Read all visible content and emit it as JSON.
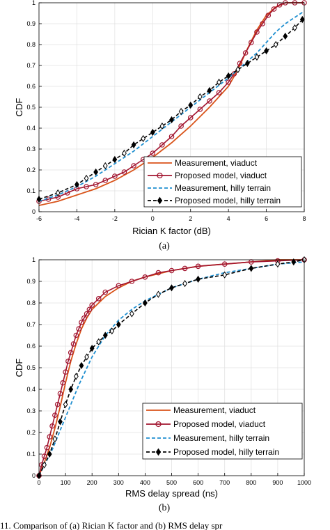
{
  "chart_data": [
    {
      "type": "line",
      "subplot_label": "(a)",
      "xlabel": "Rician K factor (dB)",
      "ylabel": "CDF",
      "xlim": [
        -6,
        8
      ],
      "ylim": [
        0,
        1
      ],
      "xticks": [
        -6,
        -4,
        -2,
        0,
        2,
        4,
        6,
        8
      ],
      "yticks": [
        0,
        0.1,
        0.2,
        0.3,
        0.4,
        0.5,
        0.6,
        0.7,
        0.8,
        0.9,
        1
      ],
      "grid": true,
      "legend_position": "bottom-right",
      "series": [
        {
          "name": "Measurement, viaduct",
          "color": "#d95319",
          "style": "solid",
          "marker": "none",
          "x": [
            -6,
            -5,
            -4,
            -3,
            -2,
            -1,
            0,
            1,
            2,
            3,
            4,
            4.5,
            5,
            5.5,
            6,
            6.5,
            7,
            7.5,
            8
          ],
          "y": [
            0.03,
            0.05,
            0.08,
            0.11,
            0.15,
            0.2,
            0.26,
            0.33,
            0.41,
            0.5,
            0.6,
            0.68,
            0.78,
            0.87,
            0.94,
            0.98,
            1.0,
            1.0,
            1.0
          ]
        },
        {
          "name": "Proposed model, viaduct",
          "color": "#a2142f",
          "style": "solid",
          "marker": "circle",
          "x": [
            -6,
            -5.5,
            -5,
            -4.5,
            -4,
            -3.5,
            -3,
            -2.5,
            -2,
            -1.5,
            -1,
            -0.5,
            0,
            0.5,
            1,
            1.5,
            2,
            2.5,
            3,
            3.5,
            4,
            4.3,
            4.6,
            4.9,
            5.2,
            5.5,
            5.8,
            6.1,
            6.4,
            6.7,
            7,
            7.5,
            8
          ],
          "y": [
            0.05,
            0.06,
            0.07,
            0.09,
            0.11,
            0.12,
            0.13,
            0.15,
            0.17,
            0.19,
            0.22,
            0.25,
            0.28,
            0.32,
            0.36,
            0.41,
            0.45,
            0.49,
            0.53,
            0.57,
            0.62,
            0.66,
            0.71,
            0.76,
            0.81,
            0.86,
            0.9,
            0.94,
            0.97,
            0.99,
            1.0,
            1.0,
            1.0
          ]
        },
        {
          "name": "Measurement, hilly terrain",
          "color": "#1f8fd0",
          "style": "dashed",
          "marker": "none",
          "x": [
            -6,
            -5,
            -4,
            -3,
            -2,
            -1,
            0,
            1,
            2,
            3,
            4,
            4.5,
            5,
            5.5,
            6,
            6.5,
            7,
            7.5,
            8
          ],
          "y": [
            0.05,
            0.08,
            0.12,
            0.17,
            0.23,
            0.29,
            0.36,
            0.43,
            0.5,
            0.57,
            0.64,
            0.68,
            0.72,
            0.76,
            0.81,
            0.86,
            0.9,
            0.93,
            0.96
          ]
        },
        {
          "name": "Proposed model, hilly terrain",
          "color": "#000000",
          "style": "dashed",
          "marker": "diamond",
          "x": [
            -6,
            -5,
            -4,
            -3.5,
            -3,
            -2.5,
            -2,
            -1.5,
            -1,
            -0.5,
            0,
            0.5,
            1,
            1.5,
            2,
            2.5,
            3,
            3.5,
            4,
            4.5,
            5,
            5.5,
            6,
            6.5,
            7,
            7.5,
            7.9
          ],
          "y": [
            0.06,
            0.09,
            0.13,
            0.16,
            0.19,
            0.22,
            0.25,
            0.28,
            0.32,
            0.35,
            0.38,
            0.41,
            0.44,
            0.48,
            0.51,
            0.55,
            0.58,
            0.62,
            0.65,
            0.68,
            0.71,
            0.74,
            0.77,
            0.8,
            0.84,
            0.88,
            0.92
          ]
        }
      ]
    },
    {
      "type": "line",
      "subplot_label": "(b)",
      "xlabel": "RMS delay spread (ns)",
      "ylabel": "CDF",
      "xlim": [
        0,
        1000
      ],
      "ylim": [
        0,
        1
      ],
      "xticks": [
        0,
        100,
        200,
        300,
        400,
        500,
        600,
        700,
        800,
        900,
        1000
      ],
      "yticks": [
        0,
        0.1,
        0.2,
        0.3,
        0.4,
        0.5,
        0.6,
        0.7,
        0.8,
        0.9,
        1
      ],
      "grid": true,
      "legend_position": "bottom-right",
      "series": [
        {
          "name": "Measurement, viaduct",
          "color": "#d95319",
          "style": "solid",
          "marker": "none",
          "x": [
            0,
            20,
            40,
            60,
            80,
            100,
            120,
            140,
            160,
            180,
            200,
            250,
            300,
            350,
            400,
            500,
            600,
            700,
            800,
            900,
            1000
          ],
          "y": [
            0.0,
            0.06,
            0.13,
            0.22,
            0.32,
            0.43,
            0.53,
            0.61,
            0.68,
            0.73,
            0.77,
            0.83,
            0.87,
            0.9,
            0.92,
            0.95,
            0.97,
            0.98,
            0.99,
            1.0,
            1.0
          ]
        },
        {
          "name": "Proposed model, viaduct",
          "color": "#a2142f",
          "style": "solid",
          "marker": "circle",
          "x": [
            0,
            10,
            20,
            30,
            40,
            50,
            60,
            70,
            80,
            90,
            100,
            110,
            120,
            130,
            140,
            150,
            160,
            170,
            180,
            190,
            200,
            225,
            250,
            300,
            350,
            400,
            450,
            500,
            550,
            600,
            700,
            800,
            900,
            1000
          ],
          "y": [
            0.0,
            0.05,
            0.09,
            0.13,
            0.18,
            0.23,
            0.28,
            0.33,
            0.38,
            0.43,
            0.48,
            0.53,
            0.57,
            0.61,
            0.65,
            0.68,
            0.71,
            0.73,
            0.75,
            0.77,
            0.79,
            0.82,
            0.85,
            0.88,
            0.9,
            0.92,
            0.94,
            0.95,
            0.96,
            0.97,
            0.98,
            0.99,
            0.995,
            1.0
          ]
        },
        {
          "name": "Measurement, hilly terrain",
          "color": "#1f8fd0",
          "style": "dashed",
          "marker": "none",
          "x": [
            0,
            50,
            100,
            150,
            200,
            250,
            300,
            350,
            400,
            450,
            500,
            550,
            600,
            700,
            800,
            900,
            1000
          ],
          "y": [
            0.0,
            0.12,
            0.27,
            0.42,
            0.55,
            0.65,
            0.72,
            0.77,
            0.81,
            0.84,
            0.87,
            0.89,
            0.91,
            0.94,
            0.96,
            0.98,
            0.99
          ]
        },
        {
          "name": "Proposed model, hilly terrain",
          "color": "#000000",
          "style": "dashed",
          "marker": "diamond",
          "x": [
            0,
            20,
            40,
            60,
            80,
            100,
            120,
            140,
            160,
            180,
            200,
            225,
            250,
            275,
            300,
            350,
            400,
            450,
            500,
            550,
            600,
            700,
            800,
            900,
            960,
            1000
          ],
          "y": [
            0.0,
            0.05,
            0.1,
            0.17,
            0.25,
            0.33,
            0.4,
            0.46,
            0.51,
            0.55,
            0.59,
            0.62,
            0.65,
            0.67,
            0.7,
            0.75,
            0.8,
            0.84,
            0.87,
            0.89,
            0.91,
            0.93,
            0.96,
            0.98,
            0.99,
            1.0
          ]
        }
      ]
    }
  ],
  "captions": {
    "top": "(a)",
    "bottom": "(b)",
    "figure_fragment": "11.   Comparison of (a) Rician K factor and (b) RMS delay spr"
  }
}
